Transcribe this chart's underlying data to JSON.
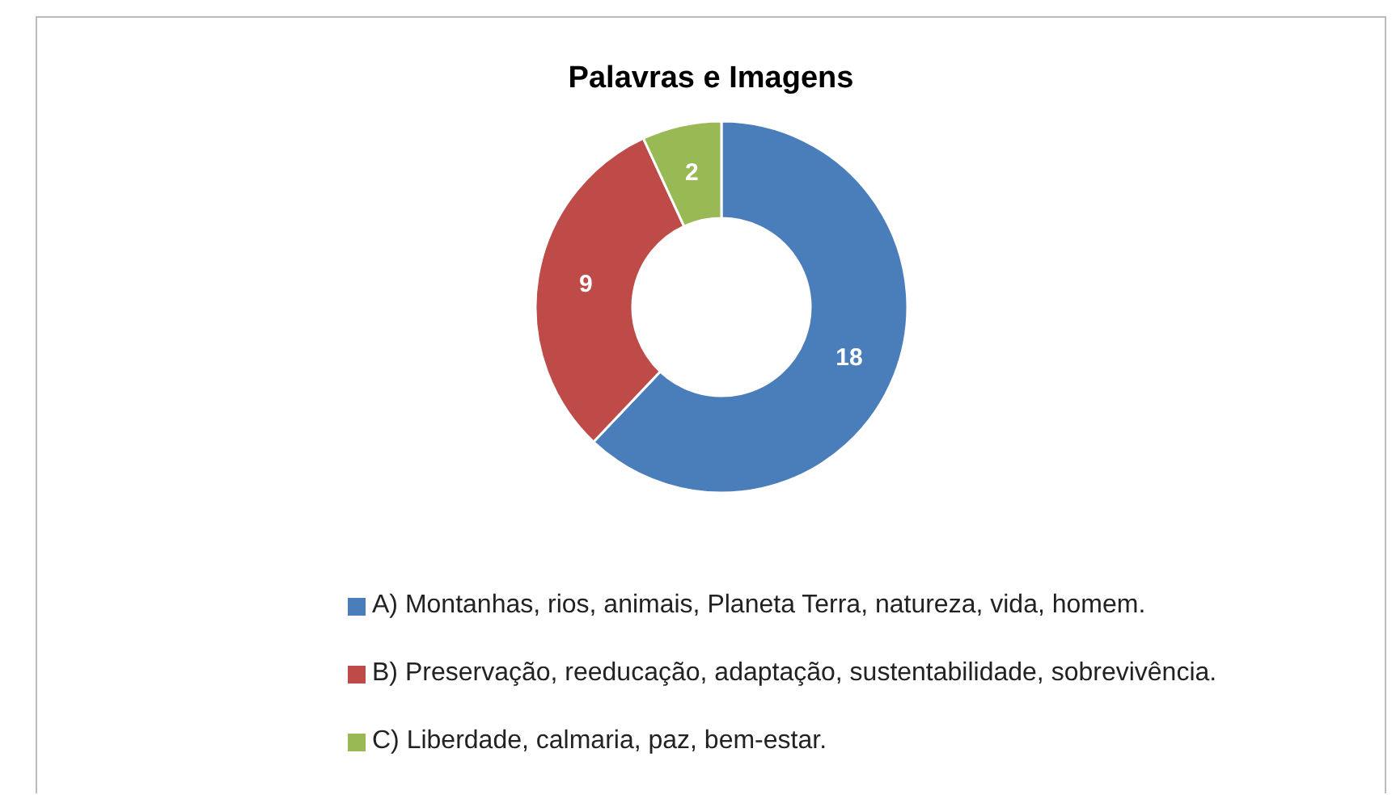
{
  "chart_data": {
    "type": "donut",
    "title": "Palavras e Imagens",
    "categories": [
      "A)  Montanhas, rios, animais, Planeta Terra, natureza, vida, homem.",
      "B)  Preservação, reeducação, adaptação, sustentabilidade, sobrevivência.",
      "C)  Liberdade, calmaria, paz, bem-estar."
    ],
    "values": [
      18,
      9,
      2
    ],
    "colors": [
      "#4a7ebb",
      "#be4b48",
      "#98b954"
    ],
    "data_labels": true,
    "legend": "bottom"
  }
}
